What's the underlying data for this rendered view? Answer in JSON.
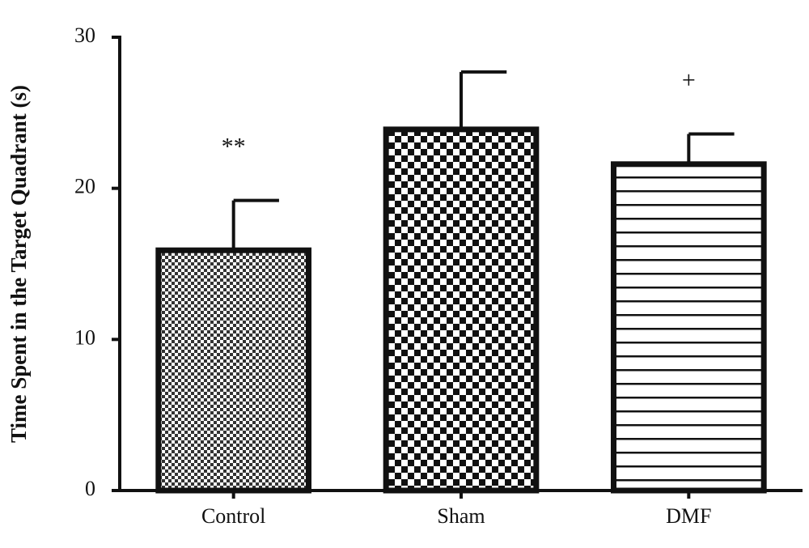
{
  "chart_data": {
    "type": "bar",
    "y_label": "Time Spent in the Target Quadrant (s)",
    "categories": [
      "Control",
      "Sham",
      "DMF"
    ],
    "values": [
      15.9,
      23.9,
      21.6
    ],
    "errors": [
      3.3,
      3.8,
      2.0
    ],
    "bar_annotations": [
      "**",
      null,
      "+"
    ],
    "ylim": [
      0,
      30
    ],
    "yticks": [
      0,
      10,
      20,
      30
    ]
  }
}
